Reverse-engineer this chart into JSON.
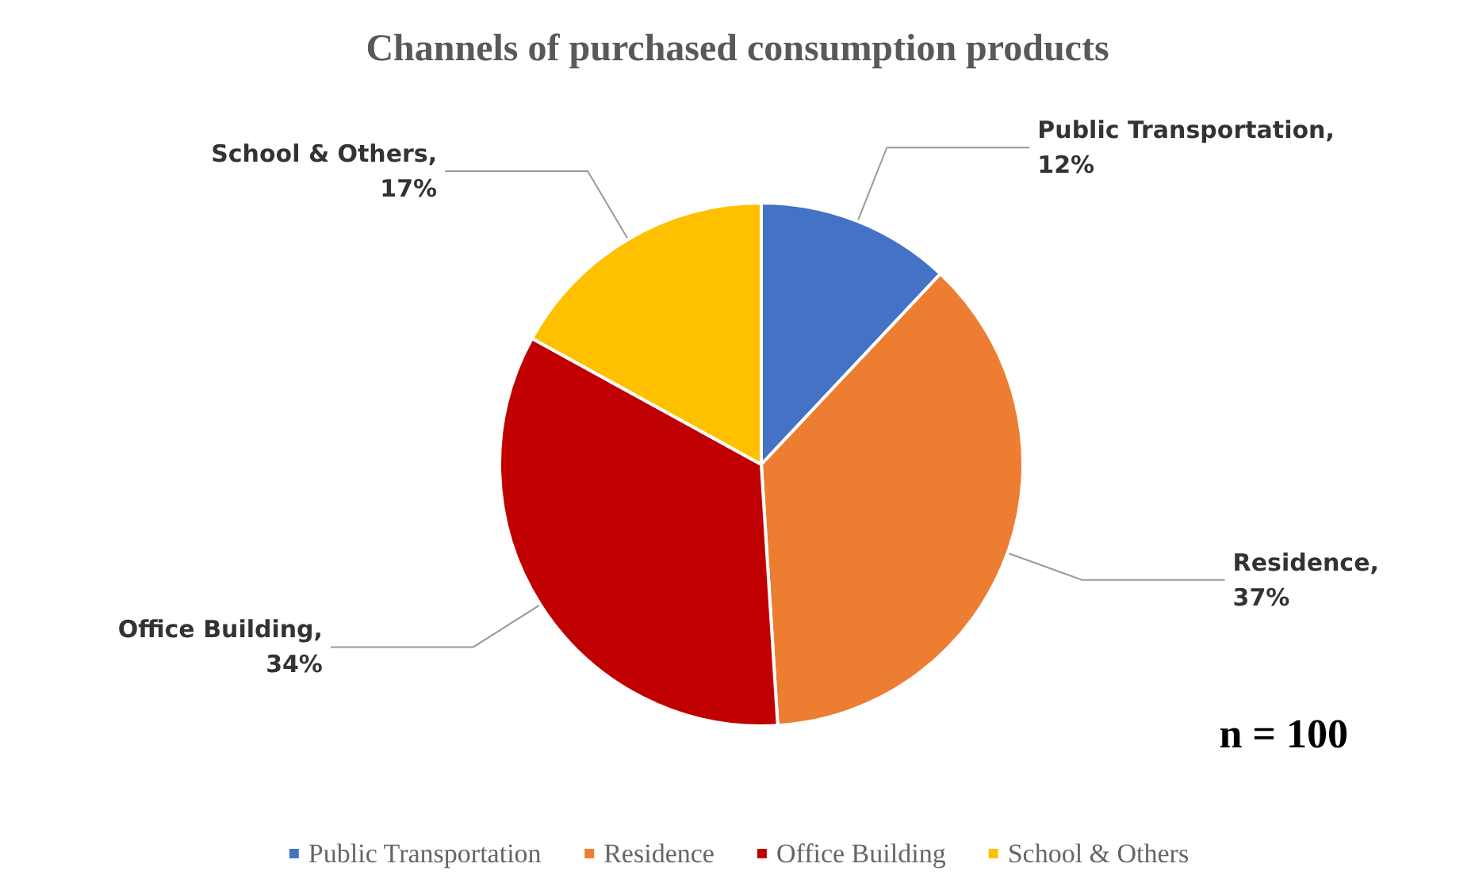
{
  "chart_data": {
    "type": "pie",
    "title": "Channels of purchased consumption products",
    "categories": [
      "Public Transportation",
      "Residence",
      "Office Building",
      "School & Others"
    ],
    "values": [
      12,
      37,
      34,
      17
    ],
    "value_labels": [
      "Public Transportation, 12%",
      "Residence, 37%",
      "Office Building, 34%",
      "School & Others, 17%"
    ],
    "colors": [
      "#4472c4",
      "#ed7d31",
      "#c00000",
      "#ffc000"
    ],
    "legend": "bottom",
    "annotations": [
      "n = 100"
    ]
  }
}
